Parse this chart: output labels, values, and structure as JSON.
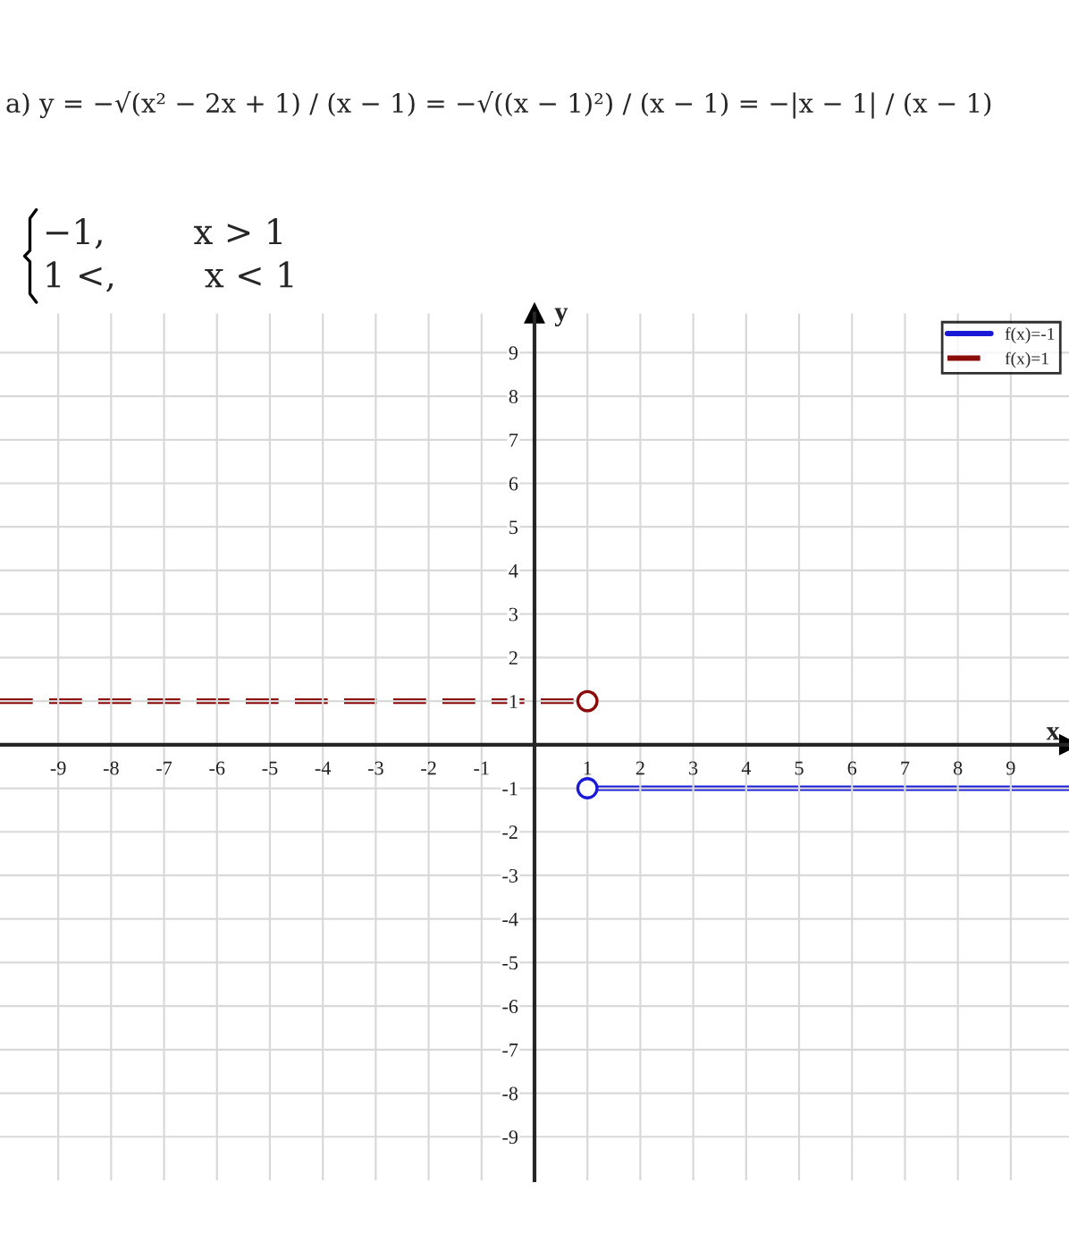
{
  "chart_data": {
    "type": "line",
    "xlabel": "x",
    "ylabel": "y",
    "annotations": [
      "a) y = −√(x² − 2x + 1) / (x − 1) = −√((x − 1)²) / (x − 1) = −|x − 1| / (x − 1)",
      "−1,        x > 1",
      "1 <,        x < 1"
    ],
    "series": [
      {
        "name": "f(x)=-1",
        "color": "#1a1ad6",
        "line_style": "solid",
        "x": [
          1,
          10.1
        ],
        "values": [
          -1,
          -1
        ]
      },
      {
        "name": "f(x)=1",
        "color": "#8b0a0a",
        "line_style": "dashed",
        "x": [
          -10.1,
          1
        ],
        "values": [
          1,
          1
        ]
      },
      {
        "type": "scatter",
        "color": "#1a1ad6",
        "marker": "circle",
        "x": [
          1
        ],
        "values": [
          -1
        ]
      },
      {
        "type": "scatter",
        "color": "#8b0a0a",
        "marker": "circle",
        "x": [
          1
        ],
        "values": [
          1
        ]
      }
    ],
    "xlim": [
      -10.1,
      10.1
    ],
    "ylim": [
      -10,
      9.9
    ],
    "xticks": [
      -9,
      -8,
      -7,
      -6,
      -5,
      -4,
      -3,
      -2,
      -1,
      1,
      2,
      3,
      4,
      5,
      6,
      7,
      8,
      9
    ],
    "yticks": [
      -9,
      -8,
      -7,
      -6,
      -5,
      -4,
      -3,
      -2,
      -1,
      1,
      2,
      3,
      4,
      5,
      6,
      7,
      8,
      9
    ],
    "grid": true,
    "legend": "top right"
  }
}
